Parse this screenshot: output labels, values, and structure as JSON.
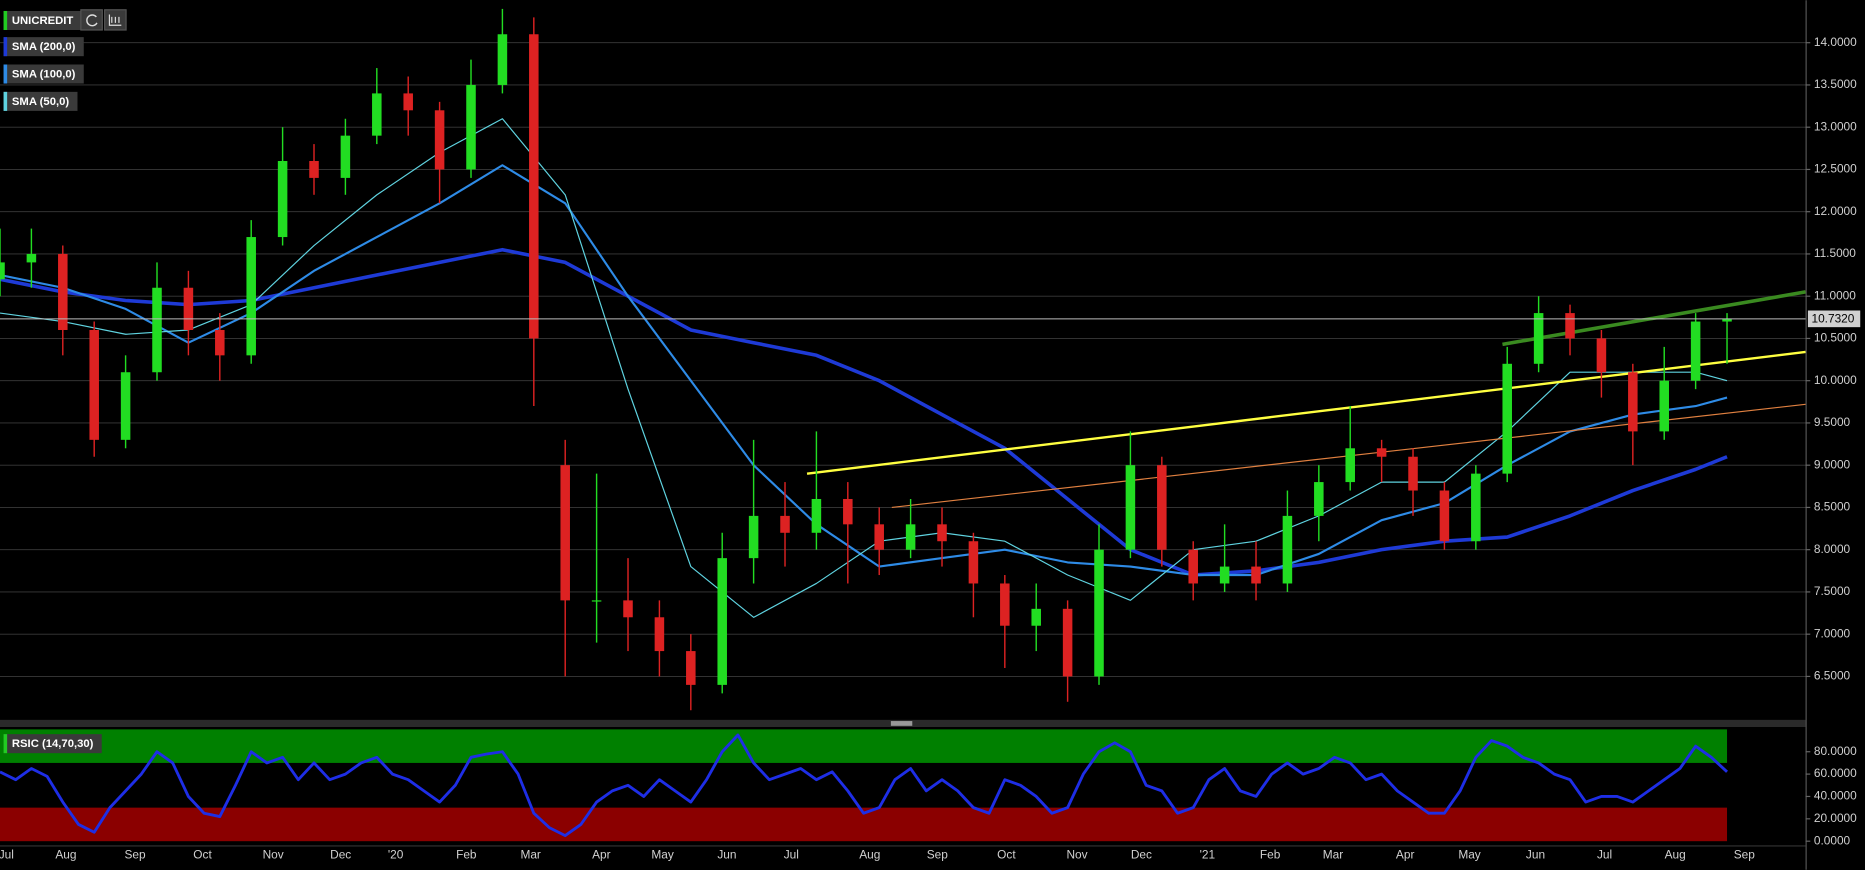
{
  "chart_data": [
    {
      "type": "candlestick",
      "name": "UNICREDIT",
      "legend_color": "#22cc22",
      "color_up": "#22dd22",
      "color_down": "#dd2222",
      "x": [
        0,
        2,
        4,
        6,
        8,
        10,
        12,
        14,
        16,
        18,
        20,
        22,
        24,
        26,
        28,
        30,
        32,
        34,
        36,
        38,
        40,
        42,
        44,
        46,
        48,
        50,
        52,
        54,
        56,
        58,
        60,
        62,
        64,
        66,
        68,
        70,
        72,
        74,
        76,
        78,
        80,
        82,
        84,
        86,
        88,
        90,
        92,
        94,
        96,
        98,
        100,
        102,
        104,
        106,
        108,
        110
      ],
      "open": [
        11.2,
        11.4,
        11.5,
        10.6,
        9.3,
        10.1,
        11.1,
        10.6,
        10.3,
        11.7,
        12.6,
        12.4,
        12.9,
        13.4,
        13.2,
        12.5,
        13.5,
        14.1,
        9.0,
        7.4,
        7.4,
        7.2,
        6.8,
        6.4,
        7.9,
        8.4,
        8.2,
        8.6,
        8.3,
        8.0,
        8.3,
        8.1,
        7.6,
        7.1,
        7.3,
        6.5,
        8.0,
        9.0,
        8.0,
        7.6,
        7.8,
        7.6,
        8.4,
        8.8,
        9.2,
        9.1,
        8.7,
        8.1,
        8.9,
        10.2,
        10.8,
        10.5,
        10.1,
        9.4,
        10.0,
        10.7
      ],
      "high": [
        11.8,
        11.8,
        11.6,
        10.7,
        10.3,
        11.4,
        11.3,
        10.8,
        11.9,
        13.0,
        12.8,
        13.1,
        13.7,
        13.6,
        13.3,
        13.8,
        14.4,
        14.3,
        9.3,
        8.9,
        7.9,
        7.4,
        7.0,
        8.2,
        9.3,
        8.8,
        9.4,
        8.8,
        8.5,
        8.6,
        8.5,
        8.2,
        7.7,
        7.6,
        7.4,
        8.3,
        9.4,
        9.1,
        8.1,
        8.3,
        8.1,
        8.7,
        9.0,
        9.7,
        9.3,
        9.2,
        8.8,
        9.0,
        10.4,
        11.0,
        10.9,
        10.6,
        10.2,
        10.4,
        10.8,
        10.8
      ],
      "low": [
        11.0,
        11.1,
        10.3,
        9.1,
        9.2,
        10.0,
        10.3,
        10.0,
        10.2,
        11.6,
        12.2,
        12.2,
        12.8,
        12.9,
        12.1,
        12.4,
        13.4,
        9.7,
        6.5,
        6.9,
        6.8,
        6.5,
        6.1,
        6.3,
        7.6,
        7.8,
        8.0,
        7.6,
        7.7,
        7.9,
        7.8,
        7.2,
        6.6,
        6.8,
        6.2,
        6.4,
        7.9,
        7.8,
        7.4,
        7.5,
        7.4,
        7.5,
        8.1,
        8.7,
        8.8,
        8.4,
        8.0,
        8.0,
        8.8,
        10.1,
        10.3,
        9.8,
        9.0,
        9.3,
        9.9,
        10.2
      ],
      "close": [
        11.4,
        11.5,
        10.6,
        9.3,
        10.1,
        11.1,
        10.6,
        10.3,
        11.7,
        12.6,
        12.4,
        12.9,
        13.4,
        13.2,
        12.5,
        13.5,
        14.1,
        10.5,
        7.4,
        7.4,
        7.2,
        6.8,
        6.4,
        7.9,
        8.4,
        8.2,
        8.6,
        8.3,
        8.0,
        8.3,
        8.1,
        7.6,
        7.1,
        7.3,
        6.5,
        8.0,
        9.0,
        8.0,
        7.6,
        7.8,
        7.6,
        8.4,
        8.8,
        9.2,
        9.1,
        8.7,
        8.1,
        8.9,
        10.2,
        10.8,
        10.5,
        10.1,
        9.4,
        10.0,
        10.7,
        10.73
      ],
      "xlim": [
        0,
        115
      ],
      "ylim": [
        6.0,
        14.46
      ],
      "yticks": [
        {
          "value": 6.5,
          "label": "6.5000"
        },
        {
          "value": 7.0,
          "label": "7.0000"
        },
        {
          "value": 7.5,
          "label": "7.5000"
        },
        {
          "value": 8.0,
          "label": "8.0000"
        },
        {
          "value": 8.5,
          "label": "8.5000"
        },
        {
          "value": 9.0,
          "label": "9.0000"
        },
        {
          "value": 9.5,
          "label": "9.5000"
        },
        {
          "value": 10.0,
          "label": "10.0000"
        },
        {
          "value": 10.5,
          "label": "10.5000"
        },
        {
          "value": 11.0,
          "label": "11.0000"
        },
        {
          "value": 11.5,
          "label": "11.5000"
        },
        {
          "value": 12.0,
          "label": "12.0000"
        },
        {
          "value": 12.5,
          "label": "12.5000"
        },
        {
          "value": 13.0,
          "label": "13.0000"
        },
        {
          "value": 13.5,
          "label": "13.5000"
        },
        {
          "value": 14.0,
          "label": "14.0000"
        }
      ],
      "grid": true,
      "last": {
        "value": 10.732,
        "label": "10.7320"
      },
      "series": [
        {
          "name": "SMA (200,0)",
          "color": "#1e3ad6",
          "width": 3,
          "x": [
            0,
            4,
            8,
            12,
            16,
            20,
            24,
            28,
            32,
            36,
            40,
            44,
            48,
            52,
            56,
            60,
            64,
            68,
            72,
            76,
            80,
            84,
            88,
            92,
            96,
            100,
            104,
            108,
            110
          ],
          "values": [
            11.2,
            11.05,
            10.95,
            10.9,
            10.95,
            11.1,
            11.25,
            11.4,
            11.55,
            11.4,
            11.0,
            10.6,
            10.45,
            10.3,
            10.0,
            9.6,
            9.2,
            8.6,
            8.0,
            7.7,
            7.75,
            7.85,
            8.0,
            8.1,
            8.15,
            8.4,
            8.7,
            8.95,
            9.1
          ]
        },
        {
          "name": "SMA (100,0)",
          "color": "#2e8be6",
          "width": 1.8,
          "x": [
            0,
            4,
            8,
            12,
            16,
            20,
            24,
            28,
            32,
            36,
            40,
            44,
            48,
            52,
            56,
            60,
            64,
            68,
            72,
            76,
            80,
            84,
            88,
            92,
            96,
            100,
            104,
            108,
            110
          ],
          "values": [
            11.25,
            11.1,
            10.85,
            10.45,
            10.8,
            11.3,
            11.7,
            12.1,
            12.55,
            12.1,
            11.0,
            10.0,
            9.0,
            8.3,
            7.8,
            7.9,
            8.0,
            7.85,
            7.8,
            7.7,
            7.7,
            7.95,
            8.35,
            8.55,
            9.0,
            9.4,
            9.6,
            9.7,
            9.8
          ]
        },
        {
          "name": "SMA (50,0)",
          "color": "#5fd3e0",
          "width": 1,
          "x": [
            0,
            4,
            8,
            12,
            16,
            20,
            24,
            28,
            32,
            36,
            40,
            44,
            48,
            52,
            56,
            60,
            64,
            68,
            72,
            76,
            80,
            84,
            88,
            92,
            96,
            100,
            104,
            108,
            110
          ],
          "values": [
            10.8,
            10.7,
            10.55,
            10.6,
            10.9,
            11.6,
            12.2,
            12.7,
            13.1,
            12.2,
            9.9,
            7.8,
            7.2,
            7.6,
            8.1,
            8.2,
            8.1,
            7.7,
            7.4,
            8.0,
            8.1,
            8.4,
            8.8,
            8.8,
            9.4,
            10.1,
            10.1,
            10.1,
            10.0
          ]
        }
      ],
      "trendlines": [
        {
          "color": "#ffff40",
          "width": 2,
          "x": [
            51.4,
            115
          ],
          "values": [
            8.9,
            10.34
          ]
        },
        {
          "color": "#e08040",
          "width": 1,
          "x": [
            56.8,
            115
          ],
          "values": [
            8.5,
            9.72
          ]
        },
        {
          "color": "#3a8a20",
          "width": 3,
          "x": [
            95.7,
            115
          ],
          "values": [
            10.43,
            11.05
          ]
        }
      ]
    },
    {
      "type": "line",
      "name": "RSIC (14,70,30)",
      "legend_color": "#22cc22",
      "color": "#1e2ee6",
      "x": [
        0,
        1,
        2,
        3,
        4,
        5,
        6,
        7,
        8,
        9,
        10,
        11,
        12,
        13,
        14,
        15,
        16,
        17,
        18,
        19,
        20,
        21,
        22,
        23,
        24,
        25,
        26,
        27,
        28,
        29,
        30,
        31,
        32,
        33,
        34,
        35,
        36,
        37,
        38,
        39,
        40,
        41,
        42,
        43,
        44,
        45,
        46,
        47,
        48,
        49,
        50,
        51,
        52,
        53,
        54,
        55,
        56,
        57,
        58,
        59,
        60,
        61,
        62,
        63,
        64,
        65,
        66,
        67,
        68,
        69,
        70,
        71,
        72,
        73,
        74,
        75,
        76,
        77,
        78,
        79,
        80,
        81,
        82,
        83,
        84,
        85,
        86,
        87,
        88,
        89,
        90,
        91,
        92,
        93,
        94,
        95,
        96,
        97,
        98,
        99,
        100,
        101,
        102,
        103,
        104,
        105,
        106,
        107,
        108,
        109,
        110
      ],
      "values": [
        62,
        55,
        65,
        58,
        35,
        15,
        8,
        30,
        45,
        60,
        80,
        70,
        40,
        25,
        22,
        50,
        80,
        70,
        75,
        55,
        70,
        55,
        60,
        70,
        75,
        60,
        55,
        45,
        35,
        50,
        75,
        78,
        80,
        60,
        25,
        12,
        5,
        15,
        35,
        45,
        50,
        40,
        55,
        45,
        35,
        55,
        80,
        95,
        70,
        55,
        60,
        65,
        55,
        62,
        45,
        25,
        30,
        55,
        65,
        45,
        55,
        45,
        30,
        25,
        55,
        50,
        40,
        25,
        30,
        60,
        80,
        88,
        80,
        50,
        45,
        25,
        30,
        55,
        65,
        45,
        40,
        60,
        70,
        60,
        65,
        75,
        70,
        55,
        60,
        45,
        35,
        25,
        25,
        45,
        75,
        90,
        85,
        75,
        70,
        60,
        55,
        35,
        40,
        40,
        35,
        45,
        55,
        65,
        85,
        75,
        62
      ],
      "xlim": [
        0,
        115
      ],
      "ylim": [
        0,
        100
      ],
      "yticks": [
        {
          "value": 0,
          "label": "0.0000"
        },
        {
          "value": 20,
          "label": "20.0000"
        },
        {
          "value": 40,
          "label": "40.0000"
        },
        {
          "value": 60,
          "label": "60.0000"
        },
        {
          "value": 80,
          "label": "80.0000"
        }
      ],
      "bands": [
        {
          "from": 70,
          "to": 100,
          "color": "#008000"
        },
        {
          "from": 0,
          "to": 30,
          "color": "#8b0000"
        }
      ],
      "xticks": [
        {
          "value": 0.4,
          "label": "Jul"
        },
        {
          "value": 4.2,
          "label": "Aug"
        },
        {
          "value": 8.6,
          "label": "Sep"
        },
        {
          "value": 12.9,
          "label": "Oct"
        },
        {
          "value": 17.4,
          "label": "Nov"
        },
        {
          "value": 21.7,
          "label": "Dec"
        },
        {
          "value": 25.2,
          "label": "'20"
        },
        {
          "value": 29.7,
          "label": "Feb"
        },
        {
          "value": 33.8,
          "label": "Mar"
        },
        {
          "value": 38.3,
          "label": "Apr"
        },
        {
          "value": 42.2,
          "label": "May"
        },
        {
          "value": 46.3,
          "label": "Jun"
        },
        {
          "value": 50.4,
          "label": "Jul"
        },
        {
          "value": 55.4,
          "label": "Aug"
        },
        {
          "value": 59.7,
          "label": "Sep"
        },
        {
          "value": 64.1,
          "label": "Oct"
        },
        {
          "value": 68.6,
          "label": "Nov"
        },
        {
          "value": 72.7,
          "label": "Dec"
        },
        {
          "value": 76.9,
          "label": "'21"
        },
        {
          "value": 80.9,
          "label": "Feb"
        },
        {
          "value": 84.9,
          "label": "Mar"
        },
        {
          "value": 89.5,
          "label": "Apr"
        },
        {
          "value": 93.6,
          "label": "May"
        },
        {
          "value": 97.8,
          "label": "Jun"
        },
        {
          "value": 102.2,
          "label": "Jul"
        },
        {
          "value": 106.7,
          "label": "Aug"
        },
        {
          "value": 111.1,
          "label": "Sep"
        }
      ]
    }
  ]
}
